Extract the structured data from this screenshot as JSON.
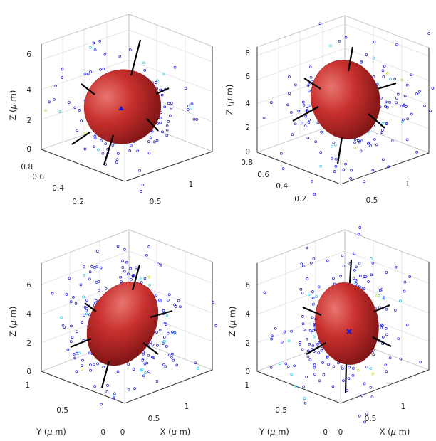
{
  "chart_data": [
    {
      "type": "scatter",
      "subtype": "3d-scatter-with-ellipsoid",
      "panel": "top-left",
      "title": "",
      "xlabel": "",
      "ylabel": "",
      "zlabel": "Z ($\\mu$ m)",
      "xticks": [
        "0.5",
        "1"
      ],
      "yticks": [
        "0.2",
        "0.4",
        "0.6",
        "0.8"
      ],
      "zticks": [
        "0",
        "2",
        "4",
        "6"
      ],
      "xlim": [
        0,
        1.3
      ],
      "ylim": [
        0.1,
        0.9
      ],
      "zlim": [
        0,
        7
      ],
      "grid": true,
      "ellipsoid": {
        "center": [
          0.62,
          0.5,
          3.0
        ],
        "semi_axes": [
          0.33,
          0.28,
          1.15
        ],
        "color": "#c8302e"
      },
      "points": {
        "count": 220,
        "colors": [
          "#1a1ad6",
          "#22c6e8",
          "#cfcf2a"
        ],
        "center_marker_color": "#1a1ad6"
      }
    },
    {
      "type": "scatter",
      "subtype": "3d-scatter-with-ellipsoid",
      "panel": "top-right",
      "title": "",
      "xlabel": "",
      "ylabel": "",
      "zlabel": "Z ($\\mu$ m)",
      "xticks": [
        "0.5",
        "1"
      ],
      "yticks": [
        "0.2",
        "0.4",
        "0.6",
        "0.8"
      ],
      "zticks": [
        "0",
        "2",
        "4",
        "6",
        "8"
      ],
      "xlim": [
        0,
        1.3
      ],
      "ylim": [
        0.1,
        0.9
      ],
      "zlim": [
        0,
        9
      ],
      "grid": true,
      "ellipsoid": {
        "center": [
          0.65,
          0.5,
          4.2
        ],
        "semi_axes": [
          0.34,
          0.3,
          1.45
        ],
        "color": "#c8302e"
      },
      "points": {
        "count": 230,
        "colors": [
          "#1a1ad6",
          "#22c6e8",
          "#cfcf2a"
        ],
        "center_marker_color": "#1a1ad6"
      }
    },
    {
      "type": "scatter",
      "subtype": "3d-scatter-with-ellipsoid",
      "panel": "bottom-left",
      "title": "",
      "xlabel": "X ($\\mu$ m)",
      "ylabel": "Y ($\\mu$ m)",
      "zlabel": "Z ($\\mu$ m)",
      "xticks": [
        "0",
        "0.5",
        "1"
      ],
      "yticks": [
        "0",
        "0.5",
        "1"
      ],
      "zticks": [
        "0",
        "2",
        "4",
        "6"
      ],
      "xlim": [
        0,
        1.3
      ],
      "ylim": [
        0,
        1.2
      ],
      "zlim": [
        0,
        7.5
      ],
      "grid": true,
      "ellipsoid": {
        "center": [
          0.62,
          0.6,
          3.0
        ],
        "semi_axes": [
          0.35,
          0.3,
          1.35
        ],
        "color": "#c8302e"
      },
      "points": {
        "count": 330,
        "colors": [
          "#1a1ad6",
          "#22c6e8",
          "#cfcf2a"
        ],
        "center_marker_color": "#1a1ad6"
      }
    },
    {
      "type": "scatter",
      "subtype": "3d-scatter-with-ellipsoid",
      "panel": "bottom-right",
      "title": "",
      "xlabel": "X ($\\mu$ m)",
      "ylabel": "Y ($\\mu$ m)",
      "zlabel": "Z ($\\mu$ m)",
      "xticks": [
        "0",
        "0.5",
        "1"
      ],
      "yticks": [
        "0",
        "0.5",
        "1"
      ],
      "zticks": [
        "0",
        "2",
        "4",
        "6"
      ],
      "xlim": [
        0,
        1.3
      ],
      "ylim": [
        0,
        1.2
      ],
      "zlim": [
        0,
        7.5
      ],
      "grid": true,
      "ellipsoid": {
        "center": [
          0.62,
          0.6,
          3.2
        ],
        "semi_axes": [
          0.33,
          0.3,
          1.3
        ],
        "color": "#c8302e"
      },
      "points": {
        "count": 300,
        "colors": [
          "#1a1ad6",
          "#22c6e8",
          "#cfcf2a"
        ],
        "center_marker_color": "#1a1ad6"
      }
    }
  ]
}
